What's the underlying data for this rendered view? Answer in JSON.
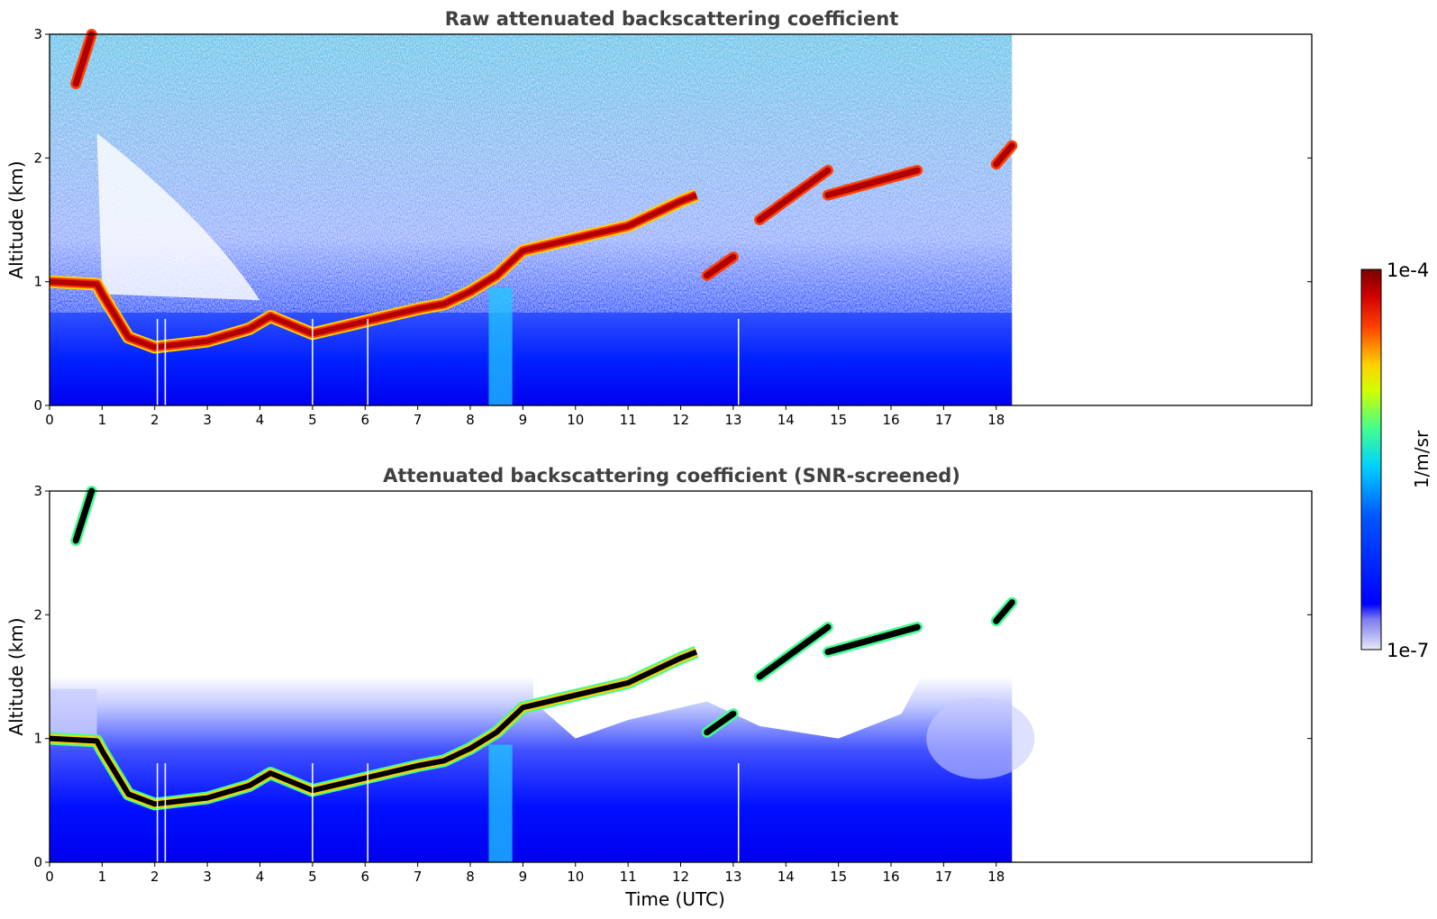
{
  "chart_data": [
    {
      "type": "heatmap",
      "title": "Raw attenuated backscattering coefficient",
      "xlabel": "",
      "ylabel": "Altitude (km)",
      "xlim": [
        0,
        24
      ],
      "ylim": [
        0,
        3
      ],
      "x_ticks": [
        "0",
        "1",
        "2",
        "3",
        "4",
        "5",
        "6",
        "7",
        "8",
        "9",
        "10",
        "11",
        "12",
        "13",
        "14",
        "15",
        "16",
        "17",
        "18"
      ],
      "y_ticks": [
        "0",
        "1",
        "2",
        "3"
      ],
      "data_extent_hours": [
        0,
        18.3
      ],
      "aerosol_layer_top_km": {
        "x": [
          0,
          0.9,
          1.0,
          1.5,
          2.0,
          3.0,
          3.8,
          4.2,
          5.0,
          6.0,
          7.0,
          7.5,
          8.0,
          8.5,
          9.0,
          10.0,
          11.0,
          11.5,
          12.0,
          12.3
        ],
        "y": [
          1.0,
          0.98,
          0.9,
          0.55,
          0.47,
          0.52,
          0.62,
          0.72,
          0.58,
          0.68,
          0.78,
          0.82,
          0.92,
          1.05,
          1.25,
          1.35,
          1.45,
          1.55,
          1.65,
          1.7
        ]
      },
      "cloud_segments_km": [
        {
          "x": [
            0.5,
            0.8
          ],
          "y": [
            2.6,
            3.0
          ]
        },
        {
          "x": [
            12.5,
            13.0
          ],
          "y": [
            1.05,
            1.2
          ]
        },
        {
          "x": [
            13.5,
            14.8
          ],
          "y": [
            1.5,
            1.9
          ]
        },
        {
          "x": [
            14.8,
            16.5
          ],
          "y": [
            1.7,
            1.9
          ]
        },
        {
          "x": [
            18.0,
            18.3
          ],
          "y": [
            1.95,
            2.1
          ]
        }
      ],
      "colorbar": {
        "label": "1/m/sr",
        "min_label": "1e-7",
        "max_label": "1e-4"
      }
    },
    {
      "type": "heatmap",
      "title": "Attenuated backscattering coefficient (SNR-screened)",
      "xlabel": "Time (UTC)",
      "ylabel": "Altitude (km)",
      "xlim": [
        0,
        24
      ],
      "ylim": [
        0,
        3
      ],
      "x_ticks": [
        "0",
        "1",
        "2",
        "3",
        "4",
        "5",
        "6",
        "7",
        "8",
        "9",
        "10",
        "11",
        "12",
        "13",
        "14",
        "15",
        "16",
        "17",
        "18"
      ],
      "y_ticks": [
        "0",
        "1",
        "2",
        "3"
      ],
      "data_extent_hours": [
        0,
        18.3
      ],
      "colorbar": {
        "label": "1/m/sr",
        "min_label": "1e-7",
        "max_label": "1e-4"
      }
    }
  ],
  "colorbar": {
    "label": "1/m/sr",
    "max_label": "1e-4",
    "min_label": "1e-7"
  }
}
